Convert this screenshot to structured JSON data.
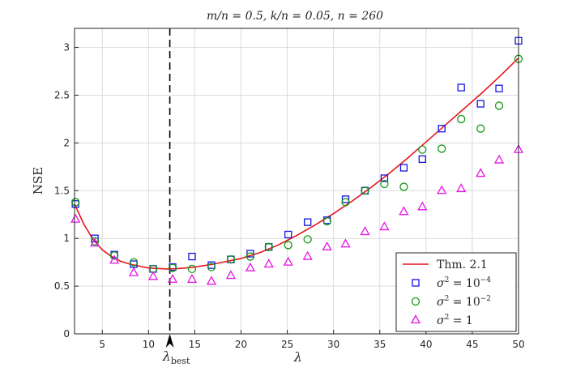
{
  "chart_data": {
    "type": "scatter",
    "title": "m/n = 0.5,  k/n = 0.05,  n = 260",
    "xlabel": "λ",
    "ylabel": "NSE",
    "xlim": [
      2,
      50
    ],
    "ylim": [
      0,
      3.2
    ],
    "xticks": [
      5,
      10,
      15,
      20,
      25,
      30,
      35,
      40,
      45,
      50
    ],
    "yticks": [
      0,
      0.5,
      1,
      1.5,
      2,
      2.5,
      3
    ],
    "tick_labels_x": [
      "5",
      "10",
      "15",
      "20",
      "25",
      "30",
      "35",
      "40",
      "45",
      "50"
    ],
    "tick_labels_y": [
      "0",
      "0.5",
      "1",
      "1.5",
      "2",
      "2.5",
      "3"
    ],
    "grid": true,
    "legend_position": "bottom-right",
    "annotation": {
      "label": "λ",
      "subscript": "best",
      "x": 12.3
    },
    "x": [
      2.1,
      4.2,
      6.3,
      8.4,
      10.5,
      12.6,
      14.7,
      16.8,
      18.9,
      21.0,
      23.0,
      25.1,
      27.2,
      29.3,
      31.3,
      33.4,
      35.5,
      37.6,
      39.6,
      41.7,
      43.8,
      45.9,
      47.9,
      50.0
    ],
    "series": [
      {
        "name": "Thm. 2.1",
        "kind": "line",
        "color": "#e8141b",
        "x": [
          2,
          3,
          4,
          5,
          6,
          7,
          8,
          9,
          10,
          11,
          12,
          13,
          14,
          15,
          16,
          17,
          18,
          19,
          20,
          22,
          24,
          26,
          28,
          30,
          32,
          34,
          36,
          38,
          40,
          42,
          44,
          46,
          48,
          50
        ],
        "values": [
          1.36,
          1.15,
          0.99,
          0.88,
          0.81,
          0.76,
          0.73,
          0.71,
          0.69,
          0.685,
          0.68,
          0.683,
          0.69,
          0.7,
          0.715,
          0.73,
          0.75,
          0.77,
          0.79,
          0.85,
          0.93,
          1.03,
          1.14,
          1.26,
          1.39,
          1.53,
          1.68,
          1.84,
          2.01,
          2.18,
          2.35,
          2.52,
          2.7,
          2.89
        ]
      },
      {
        "name": "σ² = 10⁻⁴",
        "label_base": "σ",
        "label_sup1": "2",
        "label_mid": " = 10",
        "label_sup2": "−4",
        "marker": "square",
        "color": "#1414e6",
        "values": [
          1.36,
          1.0,
          0.83,
          0.73,
          0.68,
          0.7,
          0.81,
          0.72,
          0.78,
          0.84,
          0.91,
          1.04,
          1.17,
          1.19,
          1.41,
          1.5,
          1.63,
          1.74,
          1.83,
          2.15,
          2.58,
          2.41,
          2.57,
          3.07
        ]
      },
      {
        "name": "σ² = 10⁻²",
        "label_base": "σ",
        "label_sup1": "2",
        "label_mid": " = 10",
        "label_sup2": "−2",
        "marker": "circle",
        "color": "#159b15",
        "values": [
          1.38,
          0.97,
          0.82,
          0.75,
          0.68,
          0.69,
          0.68,
          0.7,
          0.78,
          0.81,
          0.91,
          0.93,
          0.99,
          1.18,
          1.38,
          1.5,
          1.57,
          1.54,
          1.93,
          1.94,
          2.25,
          2.15,
          2.39,
          2.88
        ]
      },
      {
        "name": "σ² = 1",
        "label_base": "σ",
        "label_sup1": "2",
        "label_mid": " = 1",
        "label_sup2": "",
        "marker": "triangle",
        "color": "#e614e6",
        "values": [
          1.2,
          0.95,
          0.77,
          0.64,
          0.6,
          0.57,
          0.57,
          0.55,
          0.61,
          0.69,
          0.73,
          0.75,
          0.81,
          0.91,
          0.94,
          1.07,
          1.12,
          1.28,
          1.33,
          1.5,
          1.52,
          1.68,
          1.82,
          1.93
        ]
      }
    ]
  }
}
